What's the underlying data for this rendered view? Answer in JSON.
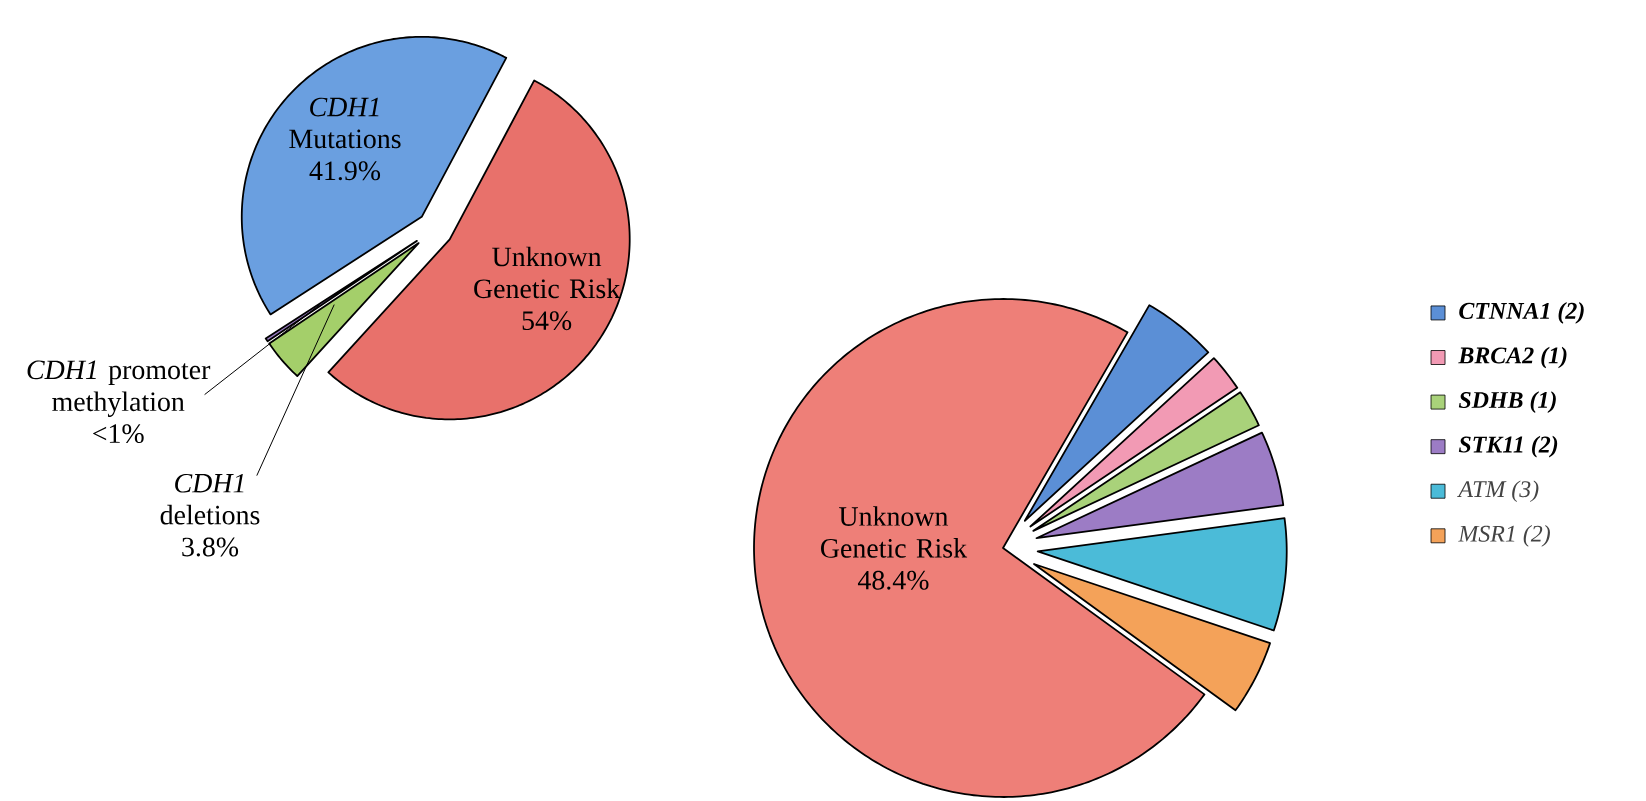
{
  "chart_data": [
    {
      "type": "pie",
      "categories": [
        "Unknown Genetic Risk",
        "*CDH1* deletions",
        "*CDH1* promoter methylation",
        "*CDH1* Mutations"
      ],
      "values": [
        54,
        3.8,
        0.3,
        41.9
      ],
      "value_labels": [
        "54%",
        "3.8%",
        "<1%",
        "41.9%"
      ],
      "colors": [
        "#e8716b",
        "#a4cf6a",
        "#9a7cc2",
        "#6a9fe0"
      ]
    },
    {
      "type": "pie",
      "categories": [
        "Unknown Genetic Risk",
        "CTNNA1  (2)",
        "BRCA2  (1)",
        "SDHB  (1)",
        "STK11  (2)",
        "ATM  (3)",
        "MSR1  (2)"
      ],
      "values": [
        48.4,
        3.2,
        1.6,
        1.6,
        3.2,
        4.8,
        3.2
      ],
      "value_labels": [
        "48.4%",
        null,
        null,
        null,
        null,
        null,
        null
      ],
      "colors": [
        "#ee7f78",
        "#5b8fd6",
        "#f29ab4",
        "#a9d27a",
        "#9c7cc5",
        "#4bbbd8",
        "#f4a259"
      ],
      "legend": "right"
    }
  ]
}
